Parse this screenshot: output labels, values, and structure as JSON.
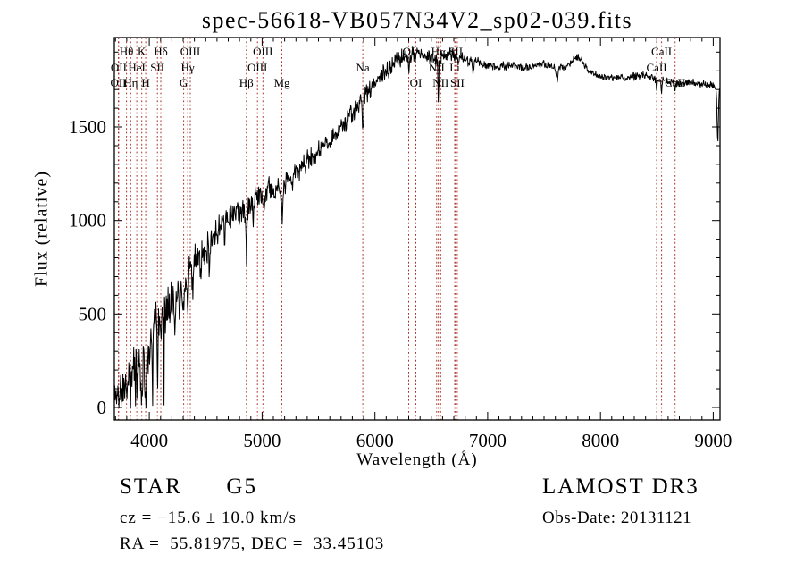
{
  "footer": {
    "object_class": "STAR      G5",
    "cz": "cz = −15.6 ± 10.0 km/s",
    "ra_dec": "RA =  55.81975, DEC =  33.45103",
    "survey_release": "LAMOST DR3",
    "obs_date": "Obs-Date: 20131121"
  },
  "chart_data": {
    "type": "line",
    "title": "spec-56618-VB057N34V2_sp02-039.fits",
    "xlabel": "Wavelength (Å)",
    "ylabel": "Flux (relative)",
    "xlim": [
      3690,
      9060
    ],
    "ylim": [
      -67,
      1978
    ],
    "xticks": {
      "major": [
        4000,
        5000,
        6000,
        7000,
        8000,
        9000
      ],
      "minor_step": 100
    },
    "yticks": {
      "major": [
        0,
        500,
        1000,
        1500
      ],
      "minor_step": 100
    },
    "grid": false,
    "frame": true,
    "tick_direction": "in",
    "legend": "none",
    "colors": {
      "spectrum": "#000000",
      "line_markers": "#a93226",
      "background": "#ffffff",
      "text": "#000000"
    },
    "spectral_lines": [
      {
        "wavelength": 3726,
        "label": "OII",
        "row": 3
      },
      {
        "wavelength": 3729,
        "label": "OII",
        "row": 2
      },
      {
        "wavelength": 3798,
        "label": "Hθ",
        "row": 1
      },
      {
        "wavelength": 3835,
        "label": "Hη",
        "row": 3
      },
      {
        "wavelength": 3889,
        "label": "HeI",
        "row": 2
      },
      {
        "wavelength": 3933,
        "label": "K",
        "row": 1
      },
      {
        "wavelength": 3968,
        "label": "H",
        "row": 3
      },
      {
        "wavelength": 4072,
        "label": "SII",
        "row": 2
      },
      {
        "wavelength": 4102,
        "label": "Hδ",
        "row": 1
      },
      {
        "wavelength": 4305,
        "label": "G",
        "row": 3
      },
      {
        "wavelength": 4340,
        "label": "Hγ",
        "row": 2
      },
      {
        "wavelength": 4363,
        "label": "OIII",
        "row": 1
      },
      {
        "wavelength": 4861,
        "label": "Hβ",
        "row": 3
      },
      {
        "wavelength": 4959,
        "label": "OIII",
        "row": 2
      },
      {
        "wavelength": 5007,
        "label": "OIII",
        "row": 1
      },
      {
        "wavelength": 5175,
        "label": "Mg",
        "row": 3
      },
      {
        "wavelength": 5893,
        "label": "Na",
        "row": 2
      },
      {
        "wavelength": 6300,
        "label": "OI",
        "row": 1
      },
      {
        "wavelength": 6363,
        "label": "OI",
        "row": 3
      },
      {
        "wavelength": 6548,
        "label": "NII",
        "row": 2
      },
      {
        "wavelength": 6563,
        "label": "Hα",
        "row": 1
      },
      {
        "wavelength": 6583,
        "label": "NII",
        "row": 3
      },
      {
        "wavelength": 6708,
        "label": "Li",
        "row": 2
      },
      {
        "wavelength": 6716,
        "label": "SII",
        "row": 1
      },
      {
        "wavelength": 6731,
        "label": "SII",
        "row": 3
      },
      {
        "wavelength": 8498,
        "label": "CaII",
        "row": 2
      },
      {
        "wavelength": 8542,
        "label": "CaII",
        "row": 1
      },
      {
        "wavelength": 8662,
        "label": "CaII",
        "row": 3
      }
    ],
    "spectrum": {
      "sample_step": 4,
      "noise_seed": 11,
      "envelope": [
        [
          3690,
          70
        ],
        [
          3740,
          110
        ],
        [
          3790,
          145
        ],
        [
          3840,
          195
        ],
        [
          3890,
          250
        ],
        [
          3940,
          275
        ],
        [
          3990,
          300
        ],
        [
          4040,
          420
        ],
        [
          4090,
          500
        ],
        [
          4140,
          565
        ],
        [
          4190,
          575
        ],
        [
          4240,
          600
        ],
        [
          4290,
          655
        ],
        [
          4340,
          725
        ],
        [
          4390,
          775
        ],
        [
          4440,
          800
        ],
        [
          4490,
          845
        ],
        [
          4540,
          880
        ],
        [
          4590,
          935
        ],
        [
          4640,
          990
        ],
        [
          4690,
          1015
        ],
        [
          4740,
          1040
        ],
        [
          4790,
          1050
        ],
        [
          4840,
          1030
        ],
        [
          4890,
          1085
        ],
        [
          4940,
          1115
        ],
        [
          4990,
          1140
        ],
        [
          5040,
          1165
        ],
        [
          5090,
          1185
        ],
        [
          5140,
          1165
        ],
        [
          5190,
          1175
        ],
        [
          5240,
          1215
        ],
        [
          5290,
          1265
        ],
        [
          5340,
          1290
        ],
        [
          5390,
          1310
        ],
        [
          5440,
          1340
        ],
        [
          5490,
          1360
        ],
        [
          5540,
          1390
        ],
        [
          5590,
          1420
        ],
        [
          5640,
          1450
        ],
        [
          5690,
          1495
        ],
        [
          5740,
          1525
        ],
        [
          5790,
          1565
        ],
        [
          5840,
          1605
        ],
        [
          5890,
          1645
        ],
        [
          5940,
          1695
        ],
        [
          5990,
          1725
        ],
        [
          6040,
          1765
        ],
        [
          6090,
          1795
        ],
        [
          6140,
          1825
        ],
        [
          6190,
          1855
        ],
        [
          6240,
          1870
        ],
        [
          6290,
          1860
        ],
        [
          6340,
          1885
        ],
        [
          6390,
          1895
        ],
        [
          6440,
          1880
        ],
        [
          6490,
          1870
        ],
        [
          6540,
          1862
        ],
        [
          6590,
          1875
        ],
        [
          6640,
          1888
        ],
        [
          6690,
          1880
        ],
        [
          6740,
          1870
        ],
        [
          6790,
          1860
        ],
        [
          6890,
          1850
        ],
        [
          6990,
          1832
        ],
        [
          7090,
          1820
        ],
        [
          7190,
          1828
        ],
        [
          7290,
          1820
        ],
        [
          7390,
          1822
        ],
        [
          7490,
          1840
        ],
        [
          7590,
          1812
        ],
        [
          7690,
          1822
        ],
        [
          7790,
          1875
        ],
        [
          7840,
          1850
        ],
        [
          7890,
          1805
        ],
        [
          7940,
          1785
        ],
        [
          7990,
          1772
        ],
        [
          8090,
          1762
        ],
        [
          8190,
          1760
        ],
        [
          8290,
          1770
        ],
        [
          8390,
          1778
        ],
        [
          8490,
          1755
        ],
        [
          8590,
          1745
        ],
        [
          8690,
          1730
        ],
        [
          8790,
          1738
        ],
        [
          8890,
          1730
        ],
        [
          8990,
          1722
        ],
        [
          9060,
          1710
        ]
      ],
      "absorption_dips": [
        [
          3735,
          20,
          6
        ],
        [
          3760,
          60,
          4
        ],
        [
          3798,
          80,
          4
        ],
        [
          3835,
          90,
          4
        ],
        [
          3889,
          160,
          4
        ],
        [
          3933,
          8,
          6
        ],
        [
          3968,
          8,
          6
        ],
        [
          4026,
          200,
          4
        ],
        [
          4072,
          240,
          4
        ],
        [
          4102,
          320,
          5
        ],
        [
          4144,
          430,
          4
        ],
        [
          4226,
          380,
          5
        ],
        [
          4271,
          480,
          4
        ],
        [
          4305,
          545,
          7
        ],
        [
          4340,
          590,
          5
        ],
        [
          4383,
          615,
          4
        ],
        [
          4455,
          700,
          4
        ],
        [
          4531,
          760,
          4
        ],
        [
          4668,
          880,
          4
        ],
        [
          4861,
          820,
          5
        ],
        [
          4920,
          1000,
          4
        ],
        [
          5015,
          1050,
          4
        ],
        [
          5110,
          1080,
          4
        ],
        [
          5175,
          1040,
          8
        ],
        [
          5270,
          1130,
          5
        ],
        [
          5328,
          1220,
          4
        ],
        [
          5893,
          1490,
          5
        ],
        [
          6122,
          1750,
          4
        ],
        [
          6300,
          1795,
          3
        ],
        [
          6563,
          1620,
          3.5
        ],
        [
          6870,
          1790,
          5
        ],
        [
          7615,
          1757,
          9
        ],
        [
          8498,
          1695,
          4
        ],
        [
          8542,
          1685,
          4
        ],
        [
          8662,
          1695,
          4
        ],
        [
          9040,
          1430,
          6
        ]
      ],
      "noise_profile": [
        [
          3690,
          55
        ],
        [
          3800,
          75
        ],
        [
          3900,
          85
        ],
        [
          4000,
          85
        ],
        [
          4150,
          75
        ],
        [
          4300,
          65
        ],
        [
          4500,
          55
        ],
        [
          4800,
          50
        ],
        [
          5100,
          45
        ],
        [
          5400,
          42
        ],
        [
          5700,
          38
        ],
        [
          6000,
          34
        ],
        [
          6300,
          30
        ],
        [
          6600,
          26
        ],
        [
          6900,
          20
        ],
        [
          7200,
          16
        ],
        [
          7500,
          15
        ],
        [
          8000,
          13
        ],
        [
          8500,
          14
        ],
        [
          9060,
          13
        ]
      ]
    }
  }
}
